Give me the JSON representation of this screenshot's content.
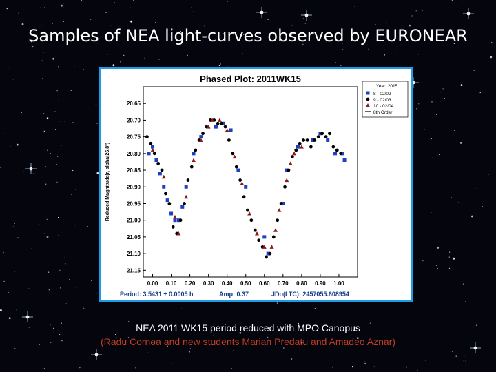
{
  "slide": {
    "title": "Samples of NEA light-curves observed by EURONEAR",
    "caption_line1": "NEA 2011 WK15 period reduced with MPO Canopus",
    "caption_line2": "(Radu Cornea and new students Marian Predatu and Amadeo Aznar)"
  },
  "colors": {
    "background": "#05060d",
    "frame_border": "#1e9be6",
    "caption_credit": "#c23b22",
    "series_1": "#1f3fbf",
    "series_2": "#000000",
    "series_3": "#8b1a1a"
  },
  "chart_data": {
    "type": "scatter",
    "title": "Phased Plot: 2011WK15",
    "xlabel": "",
    "ylabel": "Reduced Magnitude(r, alpha(26.8°)",
    "xlim": [
      -0.05,
      1.1
    ],
    "ylim": [
      21.17,
      20.6
    ],
    "y_inverted": true,
    "x_ticks": [
      "0.00",
      "0.10",
      "0.20",
      "0.30",
      "0.40",
      "0.50",
      "0.60",
      "0.70",
      "0.80",
      "0.90",
      "1.00"
    ],
    "y_ticks": [
      "20.65",
      "20.70",
      "20.75",
      "20.80",
      "20.85",
      "20.90",
      "20.95",
      "21.00",
      "21.05",
      "21.10",
      "21.15"
    ],
    "legend_position": "top-right",
    "legend_title": "Year: 2015",
    "series": [
      {
        "name": "8 - 02/02",
        "marker": "square",
        "color": "#1f3fbf",
        "points": [
          [
            -0.02,
            20.8
          ],
          [
            0,
            20.78
          ],
          [
            0.02,
            20.82
          ],
          [
            0.04,
            20.86
          ],
          [
            0.06,
            20.9
          ],
          [
            0.08,
            20.94
          ],
          [
            0.1,
            20.98
          ],
          [
            0.12,
            21.0
          ],
          [
            0.14,
            21.0
          ],
          [
            0.16,
            20.96
          ],
          [
            0.18,
            20.9
          ],
          [
            0.22,
            20.8
          ],
          [
            0.26,
            20.75
          ],
          [
            0.34,
            20.72
          ],
          [
            0.38,
            20.71
          ],
          [
            0.42,
            20.73
          ],
          [
            0.46,
            20.85
          ],
          [
            0.5,
            20.9
          ],
          [
            0.6,
            21.05
          ],
          [
            0.62,
            21.1
          ],
          [
            0.7,
            20.95
          ],
          [
            0.72,
            20.85
          ],
          [
            0.78,
            20.78
          ],
          [
            0.86,
            20.76
          ],
          [
            0.9,
            20.74
          ],
          [
            0.94,
            20.76
          ],
          [
            0.98,
            20.8
          ],
          [
            1.02,
            20.8
          ],
          [
            1.03,
            20.82
          ]
        ]
      },
      {
        "name": "9 - 02/03",
        "marker": "circle",
        "color": "#000000",
        "points": [
          [
            -0.03,
            20.75
          ],
          [
            -0.01,
            20.77
          ],
          [
            0.01,
            20.8
          ],
          [
            0.03,
            20.83
          ],
          [
            0.05,
            20.85
          ],
          [
            0.07,
            20.92
          ],
          [
            0.09,
            20.95
          ],
          [
            0.11,
            21.02
          ],
          [
            0.13,
            21.04
          ],
          [
            0.15,
            21.0
          ],
          [
            0.17,
            20.95
          ],
          [
            0.19,
            20.88
          ],
          [
            0.21,
            20.84
          ],
          [
            0.23,
            20.79
          ],
          [
            0.25,
            20.76
          ],
          [
            0.27,
            20.74
          ],
          [
            0.29,
            20.72
          ],
          [
            0.31,
            20.7
          ],
          [
            0.33,
            20.7
          ],
          [
            0.35,
            20.71
          ],
          [
            0.37,
            20.71
          ],
          [
            0.39,
            20.72
          ],
          [
            0.41,
            20.76
          ],
          [
            0.43,
            20.8
          ],
          [
            0.45,
            20.84
          ],
          [
            0.47,
            20.88
          ],
          [
            0.49,
            20.93
          ],
          [
            0.51,
            20.97
          ],
          [
            0.53,
            21.0
          ],
          [
            0.55,
            21.03
          ],
          [
            0.57,
            21.06
          ],
          [
            0.59,
            21.08
          ],
          [
            0.61,
            21.11
          ],
          [
            0.63,
            21.1
          ],
          [
            0.65,
            21.05
          ],
          [
            0.67,
            21.0
          ],
          [
            0.69,
            20.95
          ],
          [
            0.71,
            20.9
          ],
          [
            0.73,
            20.85
          ],
          [
            0.75,
            20.81
          ],
          [
            0.77,
            20.79
          ],
          [
            0.79,
            20.77
          ],
          [
            0.81,
            20.76
          ],
          [
            0.83,
            20.76
          ],
          [
            0.85,
            20.78
          ],
          [
            0.87,
            20.76
          ],
          [
            0.89,
            20.75
          ],
          [
            0.91,
            20.74
          ],
          [
            0.93,
            20.75
          ],
          [
            0.95,
            20.74
          ],
          [
            0.97,
            20.78
          ],
          [
            0.99,
            20.79
          ],
          [
            1.01,
            20.8
          ]
        ]
      },
      {
        "name": "10 - 02/04",
        "marker": "triangle",
        "color": "#8b1a1a",
        "points": [
          [
            0.0,
            20.79
          ],
          [
            0.06,
            20.87
          ],
          [
            0.12,
            20.99
          ],
          [
            0.14,
            21.04
          ],
          [
            0.18,
            20.93
          ],
          [
            0.22,
            20.82
          ],
          [
            0.26,
            20.76
          ],
          [
            0.3,
            20.72
          ],
          [
            0.32,
            20.7
          ],
          [
            0.36,
            20.7
          ],
          [
            0.4,
            20.73
          ],
          [
            0.44,
            20.81
          ],
          [
            0.48,
            20.89
          ],
          [
            0.52,
            20.98
          ],
          [
            0.56,
            21.04
          ],
          [
            0.6,
            21.08
          ],
          [
            0.64,
            21.08
          ],
          [
            0.66,
            21.03
          ],
          [
            0.68,
            20.97
          ],
          [
            0.72,
            20.88
          ],
          [
            0.74,
            20.83
          ],
          [
            0.76,
            20.8
          ],
          [
            0.8,
            20.78
          ]
        ]
      }
    ],
    "legend_extra": "8th Order",
    "footer": {
      "period": "Period: 3.5431 ± 0.0005 h",
      "amp": "Amp: 0.37",
      "jdo": "JDo(LTC): 2457055.608954"
    }
  }
}
